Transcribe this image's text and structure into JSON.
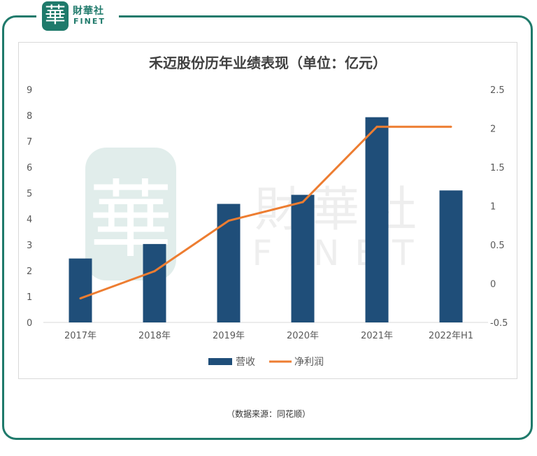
{
  "logo": {
    "seal_char": "華",
    "name_cn": "財華社",
    "name_en": "FINET"
  },
  "watermark": {
    "seal_char": "華",
    "name_cn": "財華社",
    "name_en": "FINET"
  },
  "chart_data": {
    "type": "bar+line",
    "title": "禾迈股份历年业绩表现（单位：亿元）",
    "categories": [
      "2017年",
      "2018年",
      "2019年",
      "2020年",
      "2021年",
      "2022年H1"
    ],
    "series": [
      {
        "name": "营收",
        "type": "bar",
        "axis": "left",
        "color": "#1f4e79",
        "values": [
          2.47,
          3.03,
          4.58,
          4.93,
          7.93,
          5.1
        ]
      },
      {
        "name": "净利润",
        "type": "line",
        "axis": "right",
        "color": "#ed7d31",
        "values": [
          -0.19,
          0.16,
          0.81,
          1.05,
          2.02,
          2.02
        ]
      }
    ],
    "left_axis": {
      "min": 0,
      "max": 9,
      "ticks": [
        "0",
        "1",
        "2",
        "3",
        "4",
        "5",
        "6",
        "7",
        "8",
        "9"
      ]
    },
    "right_axis": {
      "min": -0.5,
      "max": 2.5,
      "ticks": [
        "-0.5",
        "0",
        "0.5",
        "1",
        "1.5",
        "2",
        "2.5"
      ]
    },
    "legend_position": "bottom"
  },
  "source_note": "（数据来源：同花顺）",
  "colors": {
    "brand": "#1f7a6b",
    "bar": "#1f4e79",
    "line": "#ed7d31"
  }
}
